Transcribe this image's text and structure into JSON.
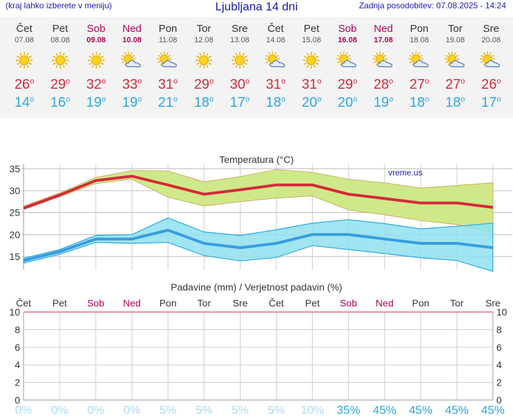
{
  "header": {
    "menu_hint": "(kraj lahko izberete v meniju)",
    "title": "Ljubljana 14 dni",
    "updated": "Zadnja posodobitev: 07.08.2025 - 14:24"
  },
  "colors": {
    "accent_blue": "#1a1ab4",
    "max_temp": "#d42a3a",
    "min_temp": "#2ba8e0",
    "weekend": "#b0005a",
    "max_band": "#cfe88a",
    "min_band": "#8fe0ee",
    "prob_high": "#2ba8e0",
    "prob_low": "#a8dcf2"
  },
  "days": [
    {
      "day": "Čet",
      "date": "07.08",
      "icon": "sun-icon",
      "max": "26",
      "min": "14",
      "weekend": false
    },
    {
      "day": "Pet",
      "date": "08.08",
      "icon": "sun-icon",
      "max": "29",
      "min": "16",
      "weekend": false
    },
    {
      "day": "Sob",
      "date": "09.08",
      "icon": "sun-icon",
      "max": "32",
      "min": "19",
      "weekend": true
    },
    {
      "day": "Ned",
      "date": "10.08",
      "icon": "sun-cloud-icon",
      "max": "33",
      "min": "19",
      "weekend": true
    },
    {
      "day": "Pon",
      "date": "11.08",
      "icon": "sun-cloud-icon",
      "max": "31",
      "min": "21",
      "weekend": false
    },
    {
      "day": "Tor",
      "date": "12.08",
      "icon": "sun-icon",
      "max": "29",
      "min": "18",
      "weekend": false
    },
    {
      "day": "Sre",
      "date": "13.08",
      "icon": "sun-icon",
      "max": "30",
      "min": "17",
      "weekend": false
    },
    {
      "day": "Čet",
      "date": "14.08",
      "icon": "sun-cloud-icon",
      "max": "31",
      "min": "18",
      "weekend": false
    },
    {
      "day": "Pet",
      "date": "15.08",
      "icon": "sun-icon",
      "max": "31",
      "min": "20",
      "weekend": false
    },
    {
      "day": "Sob",
      "date": "16.08",
      "icon": "sun-cloud-icon",
      "max": "29",
      "min": "20",
      "weekend": true
    },
    {
      "day": "Ned",
      "date": "17.08",
      "icon": "sun-cloud-icon",
      "max": "28",
      "min": "19",
      "weekend": true
    },
    {
      "day": "Pon",
      "date": "18.08",
      "icon": "sun-cloud-icon",
      "max": "27",
      "min": "18",
      "weekend": false
    },
    {
      "day": "Tor",
      "date": "19.08",
      "icon": "sun-cloud-icon",
      "max": "27",
      "min": "18",
      "weekend": false
    },
    {
      "day": "Sre",
      "date": "20.08",
      "icon": "sun-cloud-icon",
      "max": "26",
      "min": "17",
      "weekend": false
    }
  ],
  "chart_data": [
    {
      "type": "line",
      "title": "Temperatura (°C)",
      "watermark": "vreme.us",
      "ylim": [
        12,
        36
      ],
      "yticks": [
        15,
        20,
        25,
        30,
        35
      ],
      "grid": true,
      "x": [
        "07.08",
        "08.08",
        "09.08",
        "10.08",
        "11.08",
        "12.08",
        "13.08",
        "14.08",
        "15.08",
        "16.08",
        "17.08",
        "18.08",
        "19.08",
        "20.08"
      ],
      "series": [
        {
          "values": [
            26,
            29,
            32.3,
            33.3,
            31.3,
            29.2,
            30.2,
            31.3,
            31.3,
            29.2,
            28.2,
            27.2,
            27.2,
            26.2
          ],
          "band_high": [
            26.5,
            29.5,
            33,
            34.6,
            34.5,
            32,
            33.2,
            34.8,
            34.2,
            32.6,
            31.8,
            30.6,
            31.2,
            31.8
          ],
          "band_low": [
            25.7,
            28.6,
            31.6,
            32.6,
            28.5,
            26.5,
            27.5,
            28.3,
            28.8,
            25.6,
            24.5,
            23.2,
            22.3,
            20.5
          ]
        },
        {
          "values": [
            14.1,
            16.1,
            19,
            19,
            21,
            18,
            17,
            18,
            20,
            20,
            19,
            18,
            18,
            17
          ],
          "band_high": [
            14.6,
            16.6,
            19.8,
            20,
            23.8,
            20.6,
            19.8,
            21.1,
            22.6,
            23.4,
            22.5,
            21.3,
            21.9,
            22.6
          ],
          "band_low": [
            13.5,
            15.5,
            18.2,
            18,
            18.2,
            15.2,
            14,
            14.8,
            17.5,
            16.6,
            15.7,
            14.7,
            14.1,
            11.6
          ]
        }
      ]
    },
    {
      "type": "bar",
      "title": "Padavine (mm) / Verjetnost padavin (%)",
      "categories": [
        "Čet",
        "Pet",
        "Sob",
        "Ned",
        "Pon",
        "Tor",
        "Sre",
        "Čet",
        "Pet",
        "Sob",
        "Ned",
        "Pon",
        "Tor",
        "Sre"
      ],
      "weekend": [
        false,
        false,
        true,
        true,
        false,
        false,
        false,
        false,
        false,
        true,
        true,
        false,
        false,
        false
      ],
      "ylim": [
        0,
        10
      ],
      "yticks": [
        0,
        2,
        4,
        6,
        8,
        10
      ],
      "grid": true,
      "values": [
        0,
        0,
        0,
        0,
        0,
        0,
        0,
        0,
        0,
        0,
        0,
        0,
        0,
        0
      ],
      "probability": [
        "0%",
        "0%",
        "0%",
        "0%",
        "5%",
        "5%",
        "5%",
        "5%",
        "10%",
        "35%",
        "45%",
        "45%",
        "45%",
        "45%"
      ],
      "probability_values": [
        0,
        0,
        0,
        0,
        5,
        5,
        5,
        5,
        10,
        35,
        45,
        45,
        45,
        45
      ]
    }
  ]
}
